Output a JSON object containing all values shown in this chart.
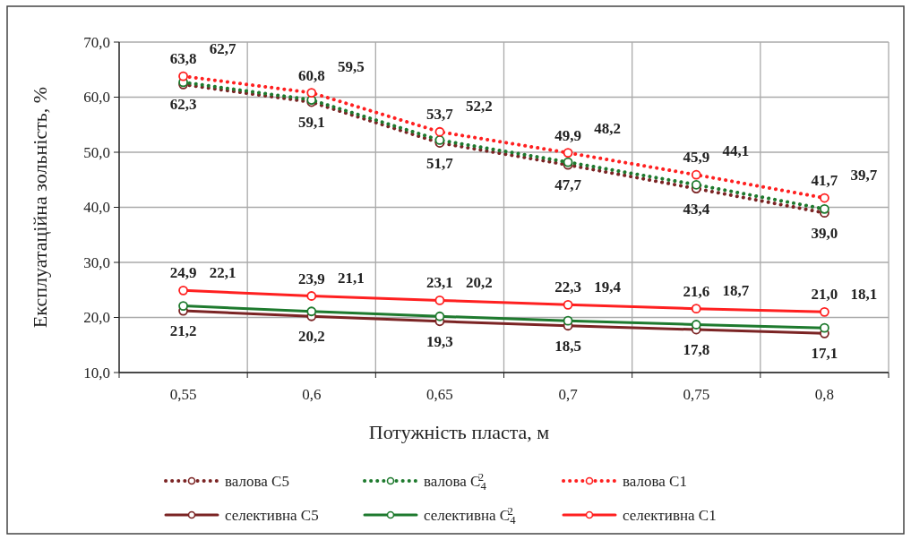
{
  "chart_data": {
    "type": "line",
    "xlabel": "Потужність пласта, м",
    "ylabel": "Експлуатаційна зольність, %",
    "categories": [
      "0,55",
      "0,6",
      "0,65",
      "0,7",
      "0,75",
      "0,8"
    ],
    "ylim": [
      10,
      70
    ],
    "yticks": [
      {
        "value": 10,
        "label": "10,0"
      },
      {
        "value": 20,
        "label": "20,0"
      },
      {
        "value": 30,
        "label": "30,0"
      },
      {
        "value": 40,
        "label": "40,0"
      },
      {
        "value": 50,
        "label": "50,0"
      },
      {
        "value": 60,
        "label": "60,0"
      },
      {
        "value": 70,
        "label": "70,0"
      }
    ],
    "grid": true,
    "legend": "bottom",
    "marker": "circle",
    "series": [
      {
        "name": "валова C5",
        "color": "#7b2424",
        "line_style": "dotted",
        "values": [
          62.3,
          59.1,
          51.7,
          47.7,
          43.4,
          39.0
        ],
        "value_labels": [
          "62,3",
          "59,1",
          "51,7",
          "47,7",
          "43,4",
          "39,0"
        ]
      },
      {
        "name": "валова C$_{4}$$^{2}$",
        "color": "#1e7a2e",
        "line_style": "dotted",
        "values": [
          62.7,
          59.5,
          52.2,
          48.2,
          44.1,
          39.7
        ],
        "value_labels": [
          "62,7",
          "59,5",
          "52,2",
          "48,2",
          "44,1",
          "39,7"
        ]
      },
      {
        "name": "валова C1",
        "color": "#ff2020",
        "line_style": "dotted",
        "values": [
          63.8,
          60.8,
          53.7,
          49.9,
          45.9,
          41.7
        ],
        "value_labels": [
          "63,8",
          "60,8",
          "53,7",
          "49,9",
          "45,9",
          "41,7"
        ]
      },
      {
        "name": "селективна C5",
        "color": "#7b2424",
        "line_style": "solid",
        "values": [
          21.2,
          20.2,
          19.3,
          18.5,
          17.8,
          17.1
        ],
        "value_labels": [
          "21,2",
          "20,2",
          "19,3",
          "18,5",
          "17,8",
          "17,1"
        ]
      },
      {
        "name": "селективна C$_{4}$$^{2}$",
        "color": "#1e7a2e",
        "line_style": "solid",
        "values": [
          22.1,
          21.1,
          20.2,
          19.4,
          18.7,
          18.1
        ],
        "value_labels": [
          "22,1",
          "21,1",
          "20,2",
          "19,4",
          "18,7",
          "18,1"
        ]
      },
      {
        "name": "селективна C1",
        "color": "#ff2020",
        "line_style": "solid",
        "values": [
          24.9,
          23.9,
          23.1,
          22.3,
          21.6,
          21.0
        ],
        "value_labels": [
          "24,9",
          "23,9",
          "23,1",
          "22,3",
          "21,6",
          "21,0"
        ]
      }
    ]
  }
}
